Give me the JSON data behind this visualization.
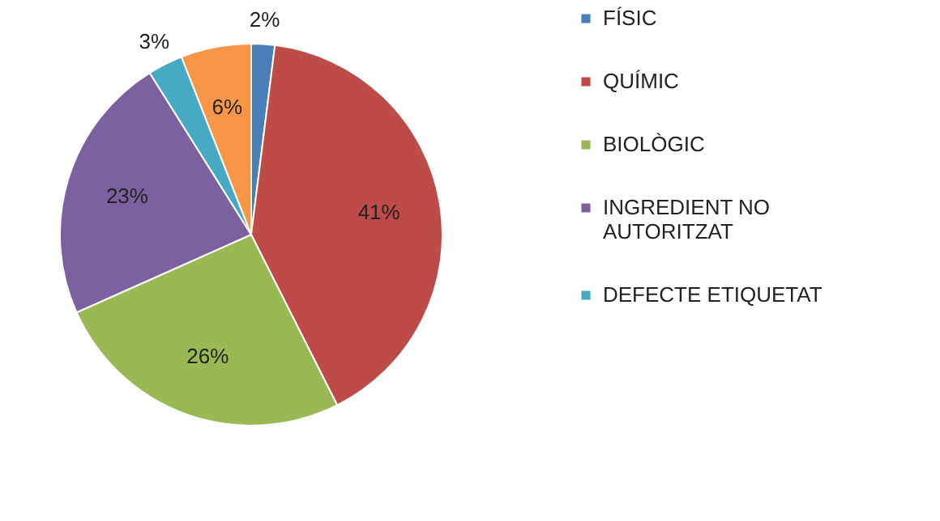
{
  "chart_data": {
    "type": "pie",
    "categories": [
      "FÍSIC",
      "QUÍMIC",
      "BIOLÒGIC",
      "INGREDIENT NO AUTORITZAT",
      "DEFECTE ETIQUETAT",
      null
    ],
    "values": [
      2,
      41,
      26,
      23,
      3,
      6
    ],
    "value_labels": [
      "2%",
      "41%",
      "26%",
      "23%",
      "3%",
      "6%"
    ],
    "colors": [
      "#4a7ebb",
      "#be4b48",
      "#98b954",
      "#7d60a0",
      "#46aac5",
      "#f79646"
    ],
    "legend": "right"
  }
}
